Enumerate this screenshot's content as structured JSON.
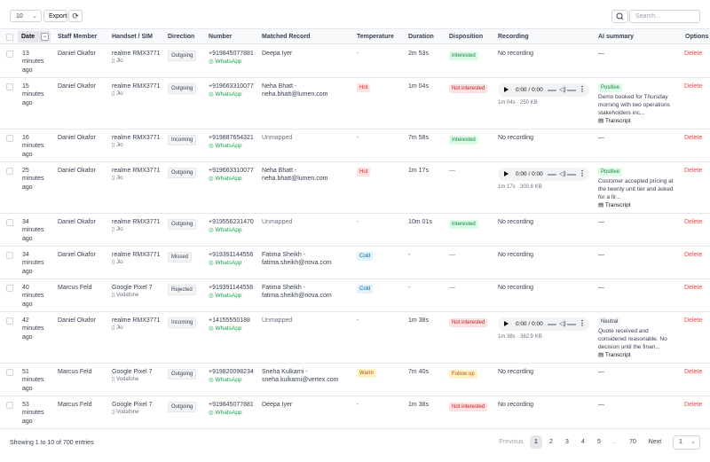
{
  "toolbar": {
    "page_size": "10",
    "export_label": "Export",
    "search_placeholder": "Search..."
  },
  "columns": {
    "date": "Date",
    "staff": "Staff Member",
    "handset": "Handset / SIM",
    "direction": "Direction",
    "number": "Number",
    "matched": "Matched Record",
    "temperature": "Temperature",
    "duration": "Duration",
    "disposition": "Disposition",
    "recording": "Recording",
    "ai_summary": "AI summary",
    "options": "Options"
  },
  "rows": [
    {
      "date": [
        "13",
        "minutes",
        "ago"
      ],
      "staff": "Daniel Okafor",
      "handset": "realme RMX3771",
      "sim": "Jio",
      "direction": "Outgoing",
      "number": "+919845077881",
      "channel": "WhatsApp",
      "matched": [
        "Deepa Iyer"
      ],
      "temperature": "-",
      "duration": "2m 53s",
      "disposition": "Interested",
      "recording": "No recording",
      "ai": "—",
      "option": "Delete"
    },
    {
      "date": [
        "15",
        "minutes",
        "ago"
      ],
      "staff": "Daniel Okafor",
      "handset": "realme RMX3771",
      "sim": "Jio",
      "direction": "Outgoing",
      "number": "+919663310077",
      "channel": "WhatsApp",
      "matched": [
        "Neha Bhatt -",
        "neha.bhatt@lumen.com"
      ],
      "temperature": "Hot",
      "duration": "1m 04s",
      "disposition": "Not interested",
      "audio": {
        "time": "0:00 / 0:00",
        "meta": "1m 04s · 250 KB"
      },
      "ai_sentiment": "Positive",
      "ai_text": [
        "Demo booked for Thursday",
        "morning with two operations",
        "stakeholders inc..."
      ],
      "transcript": "Transcript",
      "option": "Delete"
    },
    {
      "date": [
        "16",
        "minutes",
        "ago"
      ],
      "staff": "Daniel Okafor",
      "handset": "realme RMX3771",
      "sim": "Jio",
      "direction": "Incoming",
      "number": "+919887654321",
      "channel": "WhatsApp",
      "matched": [
        "Unmapped"
      ],
      "temperature": "-",
      "duration": "7m 58s",
      "disposition": "Interested",
      "recording": "No recording",
      "ai": "—",
      "option": "Delete"
    },
    {
      "date": [
        "25",
        "minutes",
        "ago"
      ],
      "staff": "Daniel Okafor",
      "handset": "realme RMX3771",
      "sim": "Jio",
      "direction": "Outgoing",
      "number": "+919663310077",
      "channel": "WhatsApp",
      "matched": [
        "Neha Bhatt -",
        "neha.bhatt@lumen.com"
      ],
      "temperature": "Hot",
      "duration": "1m 17s",
      "disposition": "—",
      "audio": {
        "time": "0:00 / 0:00",
        "meta": "1m 17s · 300.8 KB"
      },
      "ai_sentiment": "Positive",
      "ai_text": [
        "Customer accepted pricing at",
        "the twenty unit tier and asked",
        "for a fir..."
      ],
      "transcript": "Transcript",
      "option": "Delete"
    },
    {
      "date": [
        "34",
        "minutes",
        "ago"
      ],
      "staff": "Daniel Okafor",
      "handset": "realme RMX3771",
      "sim": "Jio",
      "direction": "Outgoing",
      "number": "+919556231470",
      "channel": "WhatsApp",
      "matched": [
        "Unmapped"
      ],
      "temperature": "-",
      "duration": "10m 01s",
      "disposition": "Interested",
      "recording": "No recording",
      "ai": "—",
      "option": "Delete"
    },
    {
      "date": [
        "34",
        "minutes",
        "ago"
      ],
      "staff": "Daniel Okafor",
      "handset": "realme RMX3771",
      "sim": "Jio",
      "direction": "Missed",
      "number": "+919391144556",
      "channel": "WhatsApp",
      "matched": [
        "Fatima Sheikh -",
        "fatima.sheikh@nova.com"
      ],
      "temperature": "Cold",
      "duration": "-",
      "disposition": "—",
      "recording": "No recording",
      "ai": "—",
      "option": "Delete"
    },
    {
      "date": [
        "40",
        "minutes",
        "ago"
      ],
      "staff": "Marcus Feld",
      "handset": "Google Pixel 7",
      "sim": "Vodafone",
      "direction": "Rejected",
      "number": "+919391144556",
      "channel": "WhatsApp",
      "matched": [
        "Fatima Sheikh -",
        "fatima.sheikh@nova.com"
      ],
      "temperature": "Cold",
      "duration": "-",
      "disposition": "—",
      "recording": "No recording",
      "ai": "—",
      "option": "Delete"
    },
    {
      "date": [
        "42",
        "minutes",
        "ago"
      ],
      "staff": "Daniel Okafor",
      "handset": "realme RMX3771",
      "sim": "Jio",
      "direction": "Incoming",
      "number": "+14155550188",
      "channel": "WhatsApp",
      "matched": [
        "Unmapped"
      ],
      "temperature": "-",
      "duration": "1m 38s",
      "disposition": "Not interested",
      "audio": {
        "time": "0:00 / 0:00",
        "meta": "1m 38s · 382.9 KB"
      },
      "ai_sentiment": "Neutral",
      "ai_text": [
        "Quote received and",
        "considered reasonable. No",
        "decision until the finan..."
      ],
      "transcript": "Transcript",
      "option": "Delete"
    },
    {
      "date": [
        "51",
        "minutes",
        "ago"
      ],
      "staff": "Marcus Feld",
      "handset": "Google Pixel 7",
      "sim": "Vodafone",
      "direction": "Outgoing",
      "number": "+919820098234",
      "channel": "WhatsApp",
      "matched": [
        "Sneha Kulkarni -",
        "sneha.kulkarni@vertex.com"
      ],
      "temperature": "Warm",
      "duration": "7m 40s",
      "disposition": "Follow up",
      "recording": "No recording",
      "ai": "—",
      "option": "Delete"
    },
    {
      "date": [
        "53",
        "minutes",
        "ago"
      ],
      "staff": "Marcus Feld",
      "handset": "Google Pixel 7",
      "sim": "Vodafone",
      "direction": "Outgoing",
      "number": "+919845077881",
      "channel": "WhatsApp",
      "matched": [
        "Deepa Iyer"
      ],
      "temperature": "-",
      "duration": "1m 38s",
      "disposition": "Not interested",
      "recording": "No recording",
      "ai": "—",
      "option": "Delete"
    }
  ],
  "footer": {
    "info": "Showing 1 to 10 of 700 entries",
    "previous": "Previous",
    "next": "Next",
    "pages": [
      "1",
      "2",
      "3",
      "4",
      "5",
      "...",
      "70"
    ],
    "page_size": "1"
  }
}
